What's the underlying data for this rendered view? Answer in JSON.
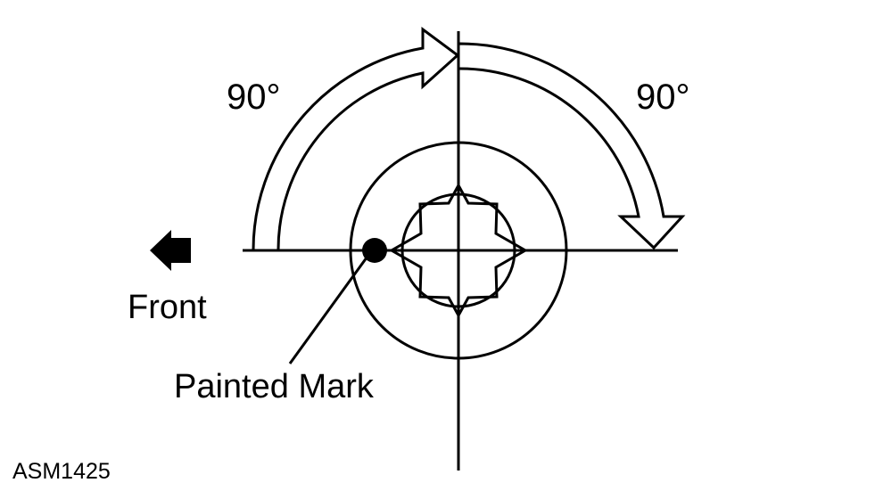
{
  "labels": {
    "angle_first": "90°",
    "angle_second": "90°",
    "direction": "Front",
    "mark": "Painted Mark",
    "figure_code": "ASM1425"
  },
  "colors": {
    "line": "#000000",
    "background": "#ffffff"
  },
  "icons": {
    "direction_arrow": "left-arrow-icon",
    "mark": "filled-dot"
  }
}
